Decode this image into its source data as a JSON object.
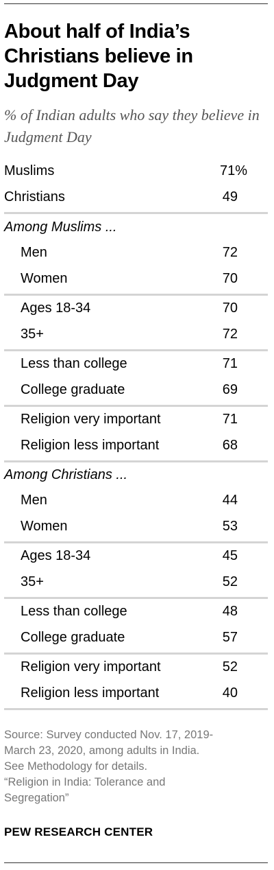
{
  "title": "About half of India’s Christians believe in Judgment Day",
  "subtitle": "% of Indian adults who say they believe in Judgment Day",
  "chart_data": {
    "type": "table",
    "title": "About half of India’s Christians believe in Judgment Day",
    "subtitle": "% of Indian adults who say they believe in Judgment Day",
    "overall": [
      {
        "label": "Muslims",
        "value": 71,
        "display": "71%"
      },
      {
        "label": "Christians",
        "value": 49,
        "display": "49"
      }
    ],
    "groups": [
      {
        "heading": "Among Muslims ...",
        "rows": [
          {
            "label": "Men",
            "value": 72
          },
          {
            "label": "Women",
            "value": 70
          },
          {
            "label": "Ages 18-34",
            "value": 70
          },
          {
            "label": "35+",
            "value": 72
          },
          {
            "label": "Less than college",
            "value": 71
          },
          {
            "label": "College graduate",
            "value": 69
          },
          {
            "label": "Religion very important",
            "value": 71
          },
          {
            "label": "Religion less important",
            "value": 68
          }
        ]
      },
      {
        "heading": "Among Christians ...",
        "rows": [
          {
            "label": "Men",
            "value": 44
          },
          {
            "label": "Women",
            "value": 53
          },
          {
            "label": "Ages 18-34",
            "value": 45
          },
          {
            "label": "35+",
            "value": 52
          },
          {
            "label": "Less than college",
            "value": 48
          },
          {
            "label": "College graduate",
            "value": 57
          },
          {
            "label": "Religion very important",
            "value": 52
          },
          {
            "label": "Religion less important",
            "value": 40
          }
        ]
      }
    ]
  },
  "source_lines": [
    "Source: Survey conducted Nov. 17, 2019-",
    "March 23, 2020, among adults in India.",
    "See Methodology for details.",
    "“Religion in India: Tolerance and",
    "Segregation”"
  ],
  "brand": "PEW RESEARCH CENTER"
}
